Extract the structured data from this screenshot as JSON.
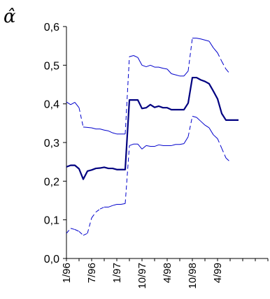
{
  "chart_data": {
    "type": "line",
    "ylabel": "α̂",
    "ylim": [
      0.0,
      0.6
    ],
    "yticks": [
      "0,0",
      "0,1",
      "0,2",
      "0,3",
      "0,4",
      "0,5",
      "0,6"
    ],
    "xlim": [
      0,
      48
    ],
    "xticks": [
      {
        "x": 0,
        "label": "1/96"
      },
      {
        "x": 6,
        "label": "7/96"
      },
      {
        "x": 12,
        "label": "1/97"
      },
      {
        "x": 18,
        "label": "10/97"
      },
      {
        "x": 24,
        "label": "4/98"
      },
      {
        "x": 30,
        "label": "10/98"
      },
      {
        "x": 36,
        "label": "4/99"
      }
    ],
    "grid": false,
    "series": [
      {
        "role": "estimate",
        "style": "solid-thick",
        "color": "#000080",
        "x": [
          0,
          1,
          2,
          3,
          4,
          5,
          6,
          7,
          8,
          9,
          10,
          11,
          12,
          13,
          14,
          15,
          16,
          17,
          18,
          19,
          20,
          21,
          22,
          23,
          24,
          25,
          26,
          27,
          28,
          29,
          30,
          31,
          32,
          33,
          34,
          35,
          36,
          37,
          38,
          39,
          40,
          41
        ],
        "values": [
          0.237,
          0.241,
          0.241,
          0.232,
          0.205,
          0.226,
          0.229,
          0.233,
          0.234,
          0.236,
          0.233,
          0.233,
          0.23,
          0.23,
          0.23,
          0.41,
          0.41,
          0.41,
          0.388,
          0.39,
          0.398,
          0.391,
          0.394,
          0.39,
          0.39,
          0.385,
          0.385,
          0.385,
          0.385,
          0.402,
          0.468,
          0.468,
          0.462,
          0.458,
          0.452,
          0.433,
          0.413,
          0.375,
          0.358,
          0.358,
          0.358,
          0.358
        ]
      },
      {
        "role": "upper-bound",
        "style": "mixed",
        "color": "#0000cc",
        "x": [
          0,
          1,
          2,
          3,
          4,
          5,
          6,
          7,
          8,
          9,
          10,
          11,
          12,
          13,
          14,
          15,
          16,
          17,
          18,
          19,
          20,
          21,
          22,
          23,
          24,
          25,
          26,
          27,
          28,
          29,
          30,
          31,
          32,
          33,
          34,
          35,
          36,
          37,
          38,
          39
        ],
        "values": [
          0.405,
          0.398,
          0.404,
          0.39,
          0.34,
          0.339,
          0.338,
          0.335,
          0.335,
          0.332,
          0.33,
          0.325,
          0.322,
          0.322,
          0.322,
          0.522,
          0.525,
          0.52,
          0.5,
          0.496,
          0.5,
          0.495,
          0.495,
          0.492,
          0.49,
          0.478,
          0.475,
          0.472,
          0.472,
          0.485,
          0.57,
          0.57,
          0.568,
          0.565,
          0.562,
          0.545,
          0.532,
          0.51,
          0.49,
          0.477
        ]
      },
      {
        "role": "lower-bound",
        "style": "mixed",
        "color": "#0000cc",
        "x": [
          0,
          1,
          2,
          3,
          4,
          5,
          6,
          7,
          8,
          9,
          10,
          11,
          12,
          13,
          14,
          15,
          16,
          17,
          18,
          19,
          20,
          21,
          22,
          23,
          24,
          25,
          26,
          27,
          28,
          29,
          30,
          31,
          32,
          33,
          34,
          35,
          36,
          37,
          38,
          39
        ],
        "values": [
          0.065,
          0.078,
          0.075,
          0.07,
          0.06,
          0.065,
          0.105,
          0.12,
          0.128,
          0.133,
          0.133,
          0.137,
          0.14,
          0.14,
          0.142,
          0.292,
          0.296,
          0.296,
          0.283,
          0.292,
          0.29,
          0.29,
          0.294,
          0.292,
          0.292,
          0.292,
          0.295,
          0.295,
          0.297,
          0.315,
          0.368,
          0.365,
          0.355,
          0.345,
          0.338,
          0.32,
          0.31,
          0.285,
          0.26,
          0.25
        ]
      }
    ]
  }
}
